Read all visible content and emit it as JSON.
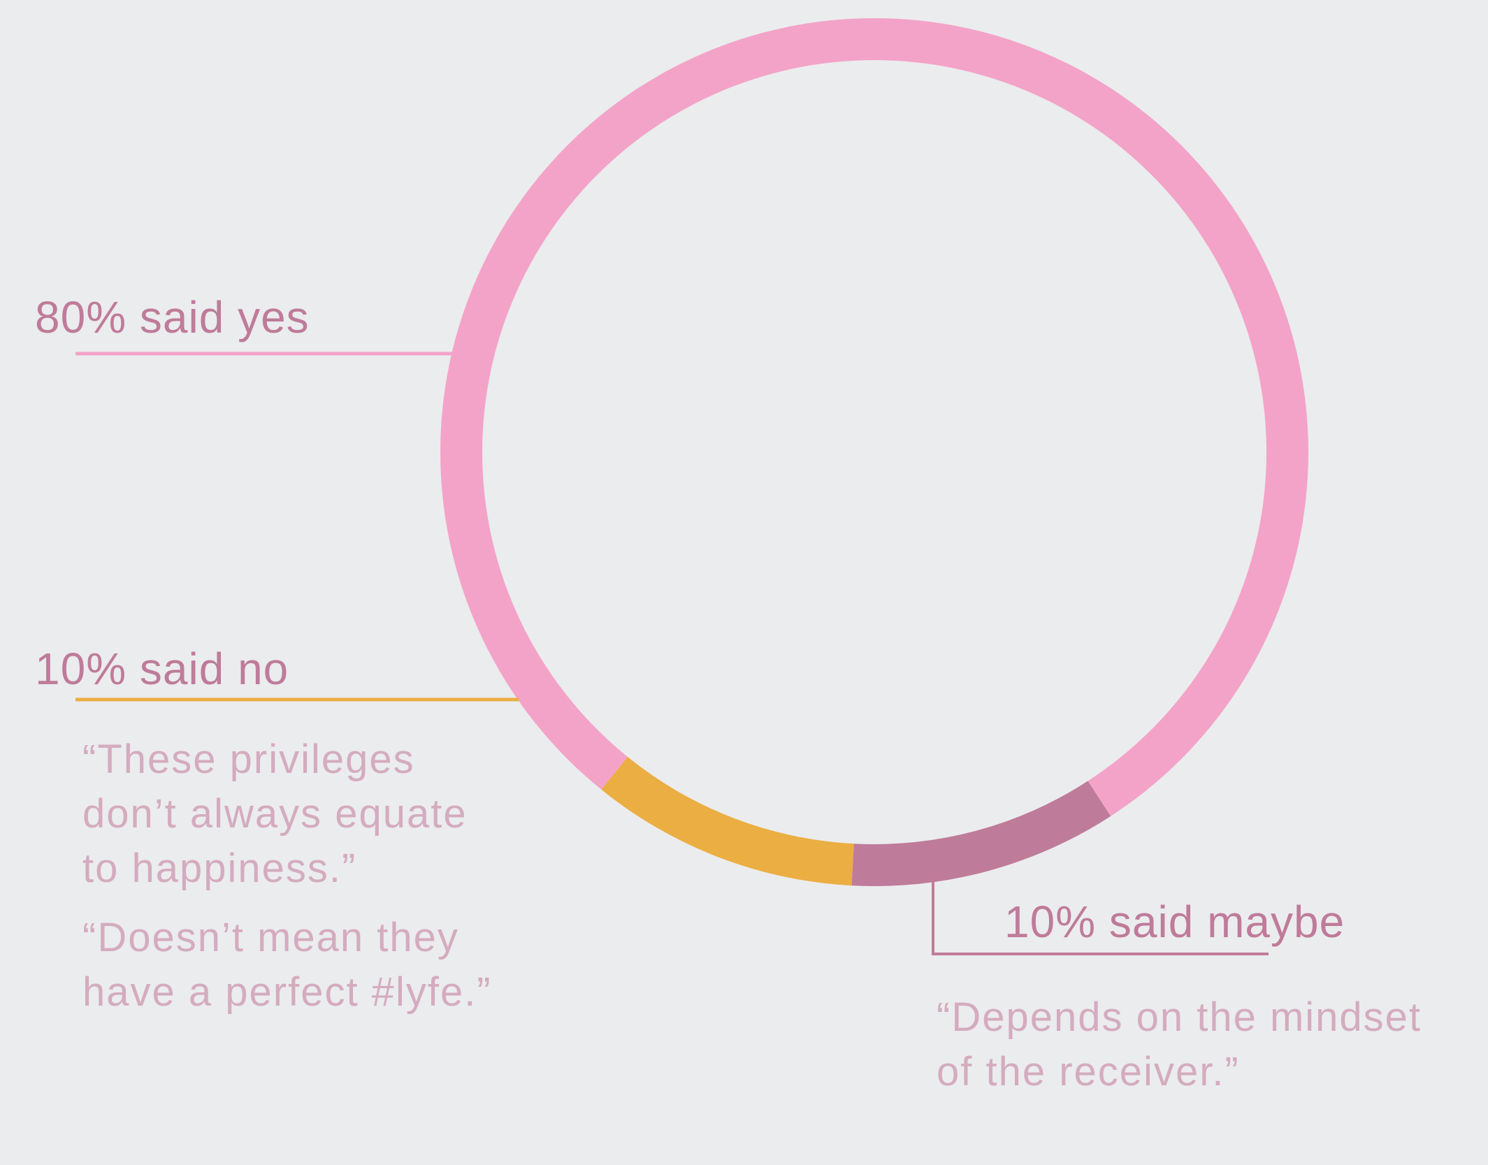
{
  "chart_data": {
    "type": "pie",
    "donut": true,
    "slices": [
      {
        "label": "80% said yes",
        "value": 80,
        "color": "#f3a3c8"
      },
      {
        "label": "10% said no",
        "value": 10,
        "color": "#ebae43"
      },
      {
        "label": "10% said maybe",
        "value": 10,
        "color": "#bf7b9a"
      }
    ],
    "annotations": {
      "no": [
        "“These privileges don’t always equate to happiness.”",
        "“Doesn’t mean they have a perfect #lyfe.”"
      ],
      "maybe": [
        "“Depends on the mindset of the receiver.”"
      ]
    }
  },
  "colors": {
    "label_text": "#bf7b9a",
    "quote_text": "#d4abbf",
    "background": "#ebeced"
  },
  "quotes": {
    "no_1_lines": [
      "“These privileges",
      "don’t always equate",
      "to happiness.”"
    ],
    "no_2_lines": [
      "“Doesn’t mean they",
      "have a perfect #lyfe.”"
    ],
    "maybe_1_lines": [
      "“Depends on the mindset",
      "of the receiver.”"
    ]
  }
}
